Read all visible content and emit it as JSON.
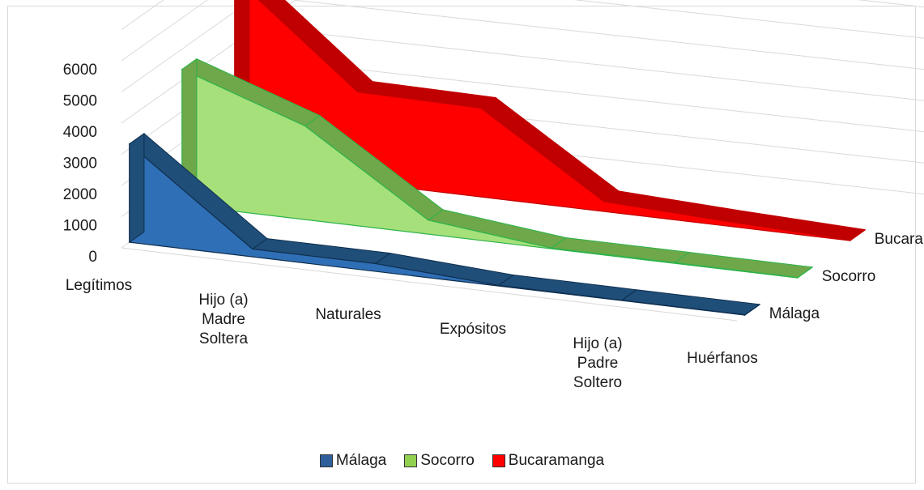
{
  "chart_data": {
    "type": "area",
    "subtype": "3d-area",
    "title": "",
    "categories": [
      "Legítimos",
      "Hijo (a) Madre Soltera",
      "Naturales",
      "Expósitos",
      "Hijo (a) Padre Soltero",
      "Huérfanos"
    ],
    "category_lines": [
      [
        "Legítimos"
      ],
      [
        "Hijo (a)",
        "Madre",
        "Soltera"
      ],
      [
        "Naturales"
      ],
      [
        "Expósitos"
      ],
      [
        "Hijo (a)",
        "Padre",
        "Soltero"
      ],
      [
        "Huérfanos"
      ]
    ],
    "y_ticks": [
      "0",
      "1000",
      "2000",
      "3000",
      "4000",
      "5000",
      "6000"
    ],
    "ylim": [
      0,
      6000
    ],
    "series": [
      {
        "name": "Málaga",
        "values": [
          3150,
          250,
          250,
          20,
          10,
          10
        ]
      },
      {
        "name": "Socorro",
        "values": [
          4350,
          3000,
          450,
          20,
          20,
          10
        ]
      },
      {
        "name": "Bucaramanga",
        "values": [
          6100,
          2900,
          2850,
          320,
          150,
          20
        ]
      }
    ],
    "legend_position": "bottom",
    "grid": true
  },
  "colors": {
    "Málaga": {
      "front": "#2f6fb6",
      "top": "#1f4e79",
      "edge": "#0f2f4f",
      "swatch": "#2f5f9a"
    },
    "Socorro": {
      "front": "#a6e07a",
      "top": "#6ea84a",
      "edge": "#2db34a",
      "swatch": "#92d050"
    },
    "Bucaramanga": {
      "front": "#ff0000",
      "top": "#c00000",
      "edge": "#c00000",
      "swatch": "#ff0000"
    },
    "grid": "#d9d9d9"
  }
}
